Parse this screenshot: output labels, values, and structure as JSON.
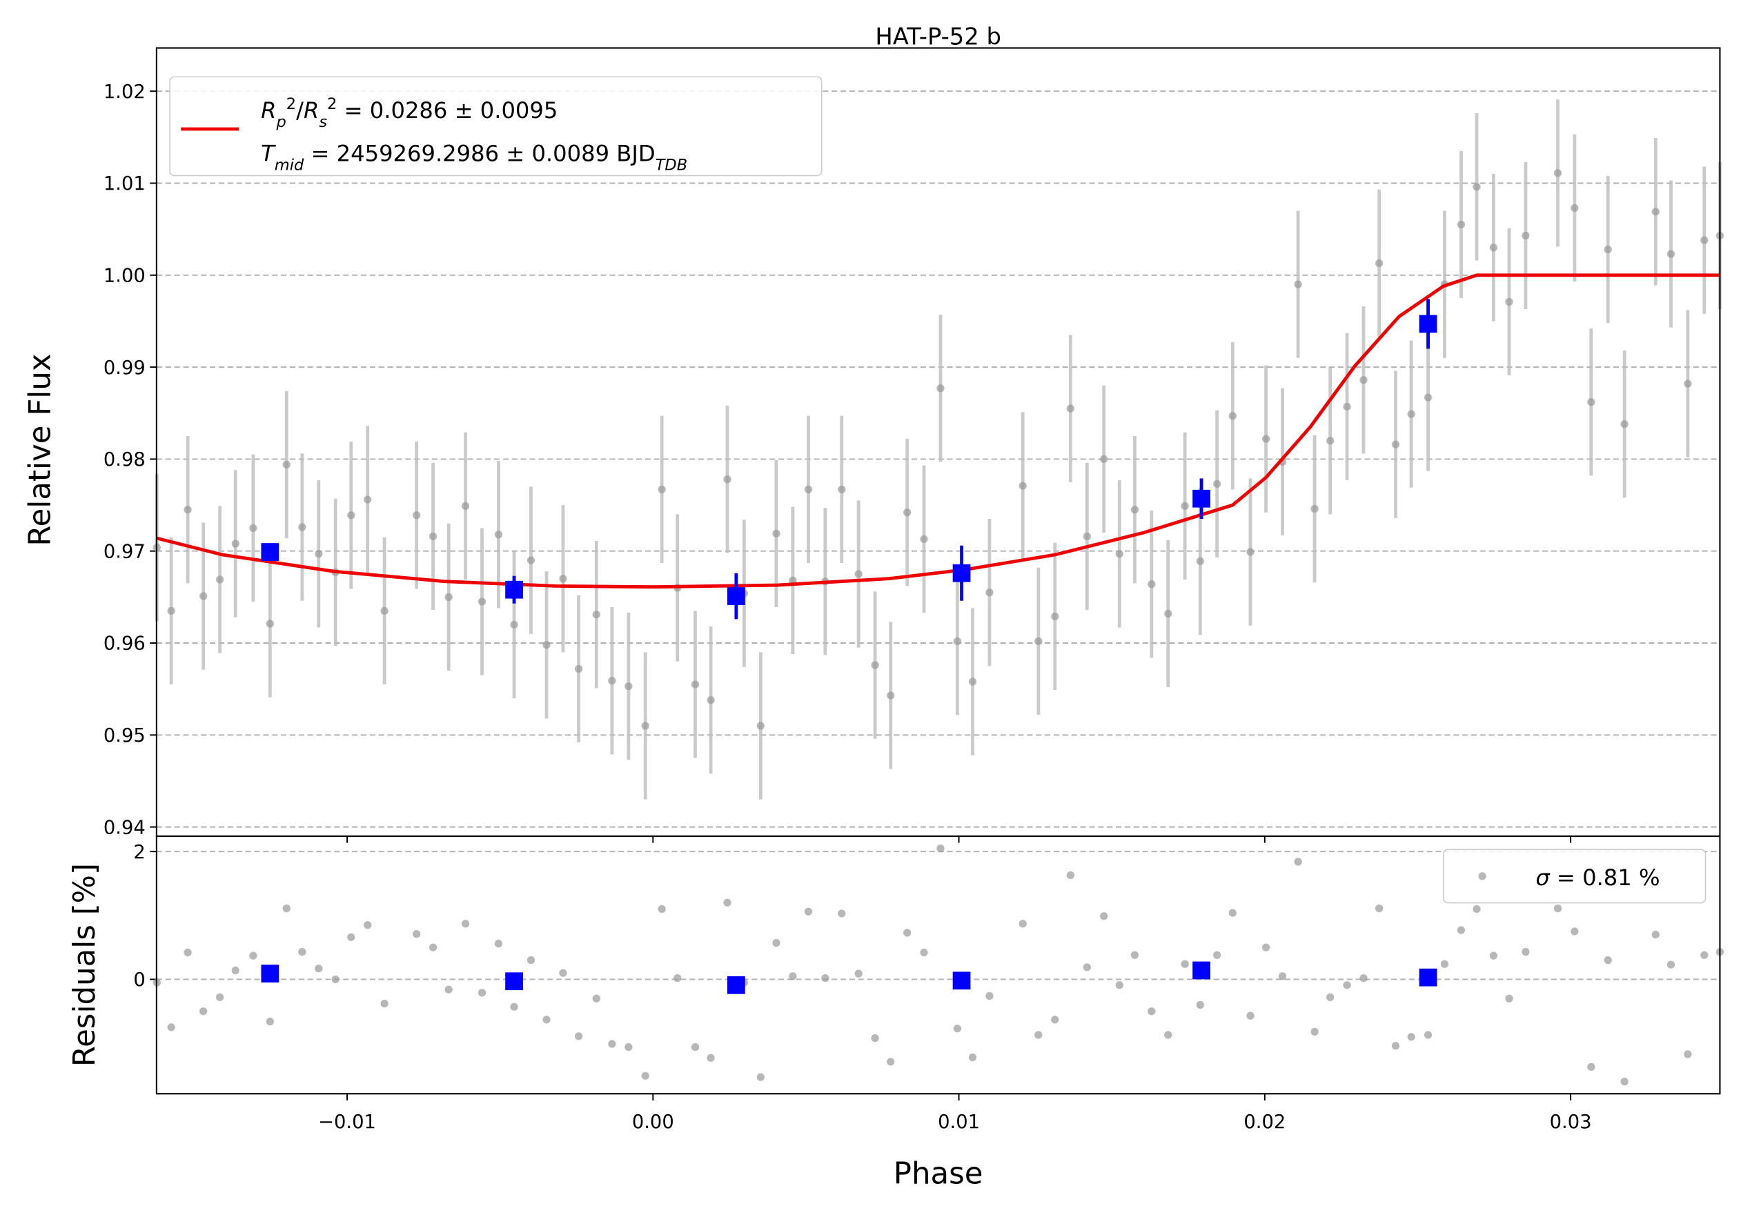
{
  "chart_data": [
    {
      "type": "scatter",
      "title": "HAT-P-52 b",
      "ylabel": "Relative Flux",
      "ylim": [
        0.939,
        1.0247
      ],
      "yticks": [
        0.94,
        0.95,
        0.96,
        0.97,
        0.98,
        0.99,
        {
          "value": 1,
          "label": "1.00"
        },
        1.01,
        1.02
      ],
      "grid": true,
      "legend": "upper left",
      "points": {
        "color": "#999999",
        "x": [
          -0.01622,
          -0.01575,
          -0.01521,
          -0.0147,
          -0.01416,
          -0.01365,
          -0.01307,
          -0.01252,
          -0.01198,
          -0.01147,
          -0.01093,
          -0.01038,
          -0.00987,
          -0.00933,
          -0.00878,
          -0.00773,
          -0.00719,
          -0.00668,
          -0.00613,
          -0.00559,
          -0.00505,
          -0.00454,
          -0.00399,
          -0.00348,
          -0.00294,
          -0.00243,
          -0.00185,
          -0.00134,
          -0.0008,
          -0.00025,
          0.00029,
          0.0008,
          0.00138,
          0.00189,
          0.00243,
          0.00298,
          0.00352,
          0.00403,
          0.00457,
          0.00508,
          0.00563,
          0.00617,
          0.00672,
          0.00726,
          0.00777,
          0.00831,
          0.00886,
          0.0094,
          0.00995,
          0.01045,
          0.011,
          0.01209,
          0.0126,
          0.01314,
          0.01365,
          0.01419,
          0.01474,
          0.01525,
          0.01575,
          0.0163,
          0.01684,
          0.01739,
          0.01789,
          0.01844,
          0.01895,
          0.01953,
          0.02004,
          0.02058,
          0.02109,
          0.02163,
          0.02214,
          0.02269,
          0.02323,
          0.02374,
          0.02428,
          0.02479,
          0.02534,
          0.02588,
          0.02642,
          0.02693,
          0.02748,
          0.02799,
          0.02853,
          0.02958,
          0.03013,
          0.03067,
          0.03122,
          0.03176,
          0.03278,
          0.03328,
          0.03383,
          0.03437,
          0.03488
        ],
        "y": [
          0.9704,
          0.9635,
          0.9745,
          0.9651,
          0.9669,
          0.9708,
          0.9725,
          0.9621,
          0.9794,
          0.9726,
          0.9697,
          0.9677,
          0.9739,
          0.9756,
          0.9635,
          0.9739,
          0.9716,
          0.965,
          0.9749,
          0.9645,
          0.9718,
          0.962,
          0.969,
          0.9598,
          0.967,
          0.9572,
          0.9631,
          0.9559,
          0.9553,
          0.951,
          0.9767,
          0.966,
          0.9555,
          0.9538,
          0.9778,
          0.9654,
          0.951,
          0.9719,
          0.9668,
          0.9767,
          0.9667,
          0.9767,
          0.9675,
          0.9576,
          0.9543,
          0.9742,
          0.9713,
          0.9877,
          0.9602,
          0.9558,
          0.9655,
          0.9771,
          0.9602,
          0.9629,
          0.9855,
          0.9716,
          0.98,
          0.9697,
          0.9745,
          0.9664,
          0.9632,
          0.9749,
          0.9689,
          0.9773,
          0.9847,
          0.9699,
          0.9822,
          0.9797,
          0.999,
          0.9746,
          0.982,
          0.9857,
          0.9886,
          1.0013,
          0.9816,
          0.9849,
          0.9867,
          0.999,
          1.0055,
          1.0096,
          1.003,
          0.9971,
          1.0043,
          1.0111,
          1.0073,
          0.9862,
          1.0028,
          0.9838,
          1.0069,
          1.0023,
          0.9882,
          1.0038,
          1.0043
        ],
        "errors": [
          0.008,
          0.008,
          0.008,
          0.008,
          0.008,
          0.008,
          0.008,
          0.008,
          0.008,
          0.008,
          0.008,
          0.008,
          0.008,
          0.008,
          0.008,
          0.008,
          0.008,
          0.008,
          0.008,
          0.008,
          0.008,
          0.008,
          0.008,
          0.008,
          0.008,
          0.008,
          0.008,
          0.008,
          0.008,
          0.008,
          0.008,
          0.008,
          0.008,
          0.008,
          0.008,
          0.008,
          0.008,
          0.008,
          0.008,
          0.008,
          0.008,
          0.008,
          0.008,
          0.008,
          0.008,
          0.008,
          0.008,
          0.008,
          0.008,
          0.008,
          0.008,
          0.008,
          0.008,
          0.008,
          0.008,
          0.008,
          0.008,
          0.008,
          0.008,
          0.008,
          0.008,
          0.008,
          0.008,
          0.008,
          0.008,
          0.008,
          0.008,
          0.008,
          0.008,
          0.008,
          0.008,
          0.008,
          0.008,
          0.008,
          0.008,
          0.008,
          0.008,
          0.008,
          0.008,
          0.008,
          0.008,
          0.008,
          0.008,
          0.008,
          0.008,
          0.008,
          0.008,
          0.008,
          0.008,
          0.008,
          0.008,
          0.008,
          0.008
        ]
      },
      "binned": {
        "color": "#0000ff",
        "x": [
          -0.01252,
          -0.00454,
          0.00272,
          0.01009,
          0.01793,
          0.02534
        ],
        "y": [
          0.9699,
          0.9658,
          0.9651,
          0.9676,
          0.9757,
          0.9947
        ],
        "errors": [
          0.0008,
          0.0015,
          0.0025,
          0.003,
          0.0022,
          0.0027
        ]
      },
      "model": {
        "color": "#ee0000",
        "name": [
          [
            "R",
            "p",
            "2",
            "/",
            "R",
            "s",
            "2",
            " = 0.0286 ± 0.0095"
          ],
          [
            "T",
            "mid",
            " = 2459269.2986 ± 0.0089 BJD",
            "TDB"
          ]
        ],
        "x": [
          -0.01622,
          -0.01408,
          -0.01045,
          -0.00682,
          -0.00319,
          0,
          0.00407,
          0.0077,
          0.01024,
          0.01314,
          0.01604,
          0.01895,
          0.02004,
          0.02149,
          0.02294,
          0.02439,
          0.02584,
          0.02693,
          0.02802,
          0.03488
        ],
        "y": [
          0.9714,
          0.9696,
          0.9678,
          0.9667,
          0.9662,
          0.9661,
          0.9663,
          0.967,
          0.968,
          0.9696,
          0.972,
          0.975,
          0.978,
          0.9835,
          0.9901,
          0.9955,
          0.9988,
          1.0,
          1.0,
          1.0
        ]
      }
    },
    {
      "type": "scatter",
      "xlabel": "Phase",
      "ylabel": "Residuals [%]",
      "xlim": [
        -0.01623,
        0.03488
      ],
      "xticks": [
        {
          "value": -0.01,
          "label": "−0.01"
        },
        {
          "value": 0,
          "label": "0.00"
        },
        0.01,
        0.02,
        0.03
      ],
      "ylim": [
        -1.79,
        2.24
      ],
      "yticks": [
        0,
        2
      ],
      "grid": true,
      "legend": "upper right",
      "legend_label": [
        "σ",
        " = 0.81 %"
      ],
      "points": {
        "color": "#999999",
        "y": [
          -0.05,
          -0.75,
          0.42,
          -0.5,
          -0.28,
          0.14,
          0.37,
          -0.66,
          1.11,
          0.43,
          0.17,
          0,
          0.66,
          0.85,
          -0.38,
          0.71,
          0.5,
          -0.16,
          0.87,
          -0.21,
          0.56,
          -0.43,
          0.3,
          -0.63,
          0.1,
          -0.89,
          -0.3,
          -1.01,
          -1.06,
          -1.51,
          1.1,
          0.02,
          -1.06,
          -1.23,
          1.2,
          -0.05,
          -1.53,
          0.57,
          0.05,
          1.06,
          0.02,
          1.03,
          0.09,
          -0.92,
          -1.29,
          0.73,
          0.42,
          2.05,
          -0.77,
          -1.22,
          -0.26,
          0.87,
          -0.87,
          -0.63,
          1.63,
          0.19,
          0.99,
          -0.09,
          0.38,
          -0.5,
          -0.87,
          0.24,
          -0.4,
          0.38,
          1.04,
          -0.57,
          0.5,
          0.05,
          1.84,
          -0.82,
          -0.28,
          -0.09,
          0.02,
          1.11,
          -1.04,
          -0.9,
          -0.87,
          0.24,
          0.77,
          1.1,
          0.37,
          -0.3,
          0.43,
          1.11,
          0.75,
          -1.37,
          0.3,
          -1.6,
          0.7,
          0.23,
          -1.17,
          0.38,
          0.43
        ]
      },
      "binned": {
        "color": "#0000ff",
        "y": [
          0.09,
          -0.03,
          -0.09,
          -0.02,
          0.14,
          0.03
        ]
      }
    }
  ]
}
